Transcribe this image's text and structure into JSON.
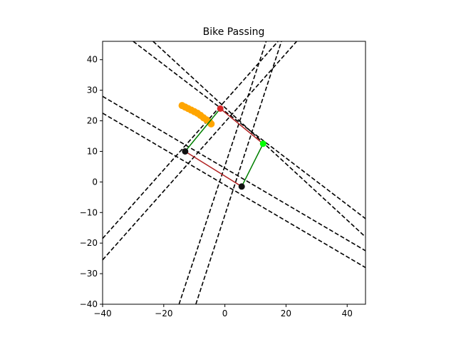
{
  "chart_data": {
    "type": "scatter",
    "title": "Bike Passing",
    "xlabel": "",
    "ylabel": "",
    "xlim": [
      -40,
      46
    ],
    "ylim": [
      -40,
      46
    ],
    "xticks": [
      -40,
      -20,
      0,
      20,
      40
    ],
    "yticks": [
      -40,
      -30,
      -20,
      -10,
      0,
      10,
      20,
      30,
      40
    ],
    "xtick_labels": [
      "−40",
      "−20",
      "0",
      "20",
      "40"
    ],
    "ytick_labels": [
      "−40",
      "−30",
      "−20",
      "−10",
      "0",
      "10",
      "20",
      "30",
      "40"
    ],
    "grid": false,
    "colors": {
      "dashed": "#000000",
      "red_edge": "#b22222",
      "green_edge": "#008000",
      "trail": "#ffa500",
      "front_point": "#d62728",
      "side_point": "#00ff00",
      "corner_point": "#111111"
    },
    "dashed_lines": [
      [
        [
          -40,
          -18.5
        ],
        [
          17.4,
          46
        ]
      ],
      [
        [
          -40,
          -25.5
        ],
        [
          23.5,
          46
        ]
      ],
      [
        [
          -15,
          -40
        ],
        [
          13.5,
          46
        ]
      ],
      [
        [
          -9.5,
          -40
        ],
        [
          18.5,
          46
        ]
      ],
      [
        [
          -40,
          28
        ],
        [
          46,
          -22.5
        ]
      ],
      [
        [
          -40,
          22.5
        ],
        [
          46,
          -28
        ]
      ],
      [
        [
          -30,
          46
        ],
        [
          46,
          -12
        ]
      ],
      [
        [
          -23.5,
          46
        ],
        [
          46,
          -18
        ]
      ]
    ],
    "box_edges": [
      {
        "color": "red_edge",
        "points": [
          [
            -1.5,
            24
          ],
          [
            12.5,
            12.5
          ]
        ]
      },
      {
        "color": "green_edge",
        "points": [
          [
            12.5,
            12.5
          ],
          [
            5.5,
            -1.5
          ]
        ]
      },
      {
        "color": "red_edge",
        "points": [
          [
            5.5,
            -1.5
          ],
          [
            -13,
            10
          ]
        ]
      },
      {
        "color": "green_edge",
        "points": [
          [
            -13,
            10
          ],
          [
            -1.5,
            24
          ]
        ]
      }
    ],
    "trail_points": [
      [
        -14,
        25
      ],
      [
        -13,
        24.5
      ],
      [
        -12,
        24
      ],
      [
        -11,
        23.5
      ],
      [
        -10,
        23
      ],
      [
        -9,
        22.5
      ],
      [
        -8,
        21.8
      ],
      [
        -7,
        21
      ],
      [
        -6,
        20.3
      ],
      [
        -5,
        19.6
      ],
      [
        -4.5,
        19
      ]
    ],
    "markers": [
      {
        "name": "front-point",
        "x": -1.5,
        "y": 24,
        "color": "front_point"
      },
      {
        "name": "side-point",
        "x": 12.5,
        "y": 12.5,
        "color": "side_point"
      },
      {
        "name": "corner-point-left",
        "x": -13,
        "y": 10,
        "color": "corner_point"
      },
      {
        "name": "corner-point-bottom",
        "x": 5.5,
        "y": -1.5,
        "color": "corner_point"
      }
    ]
  }
}
